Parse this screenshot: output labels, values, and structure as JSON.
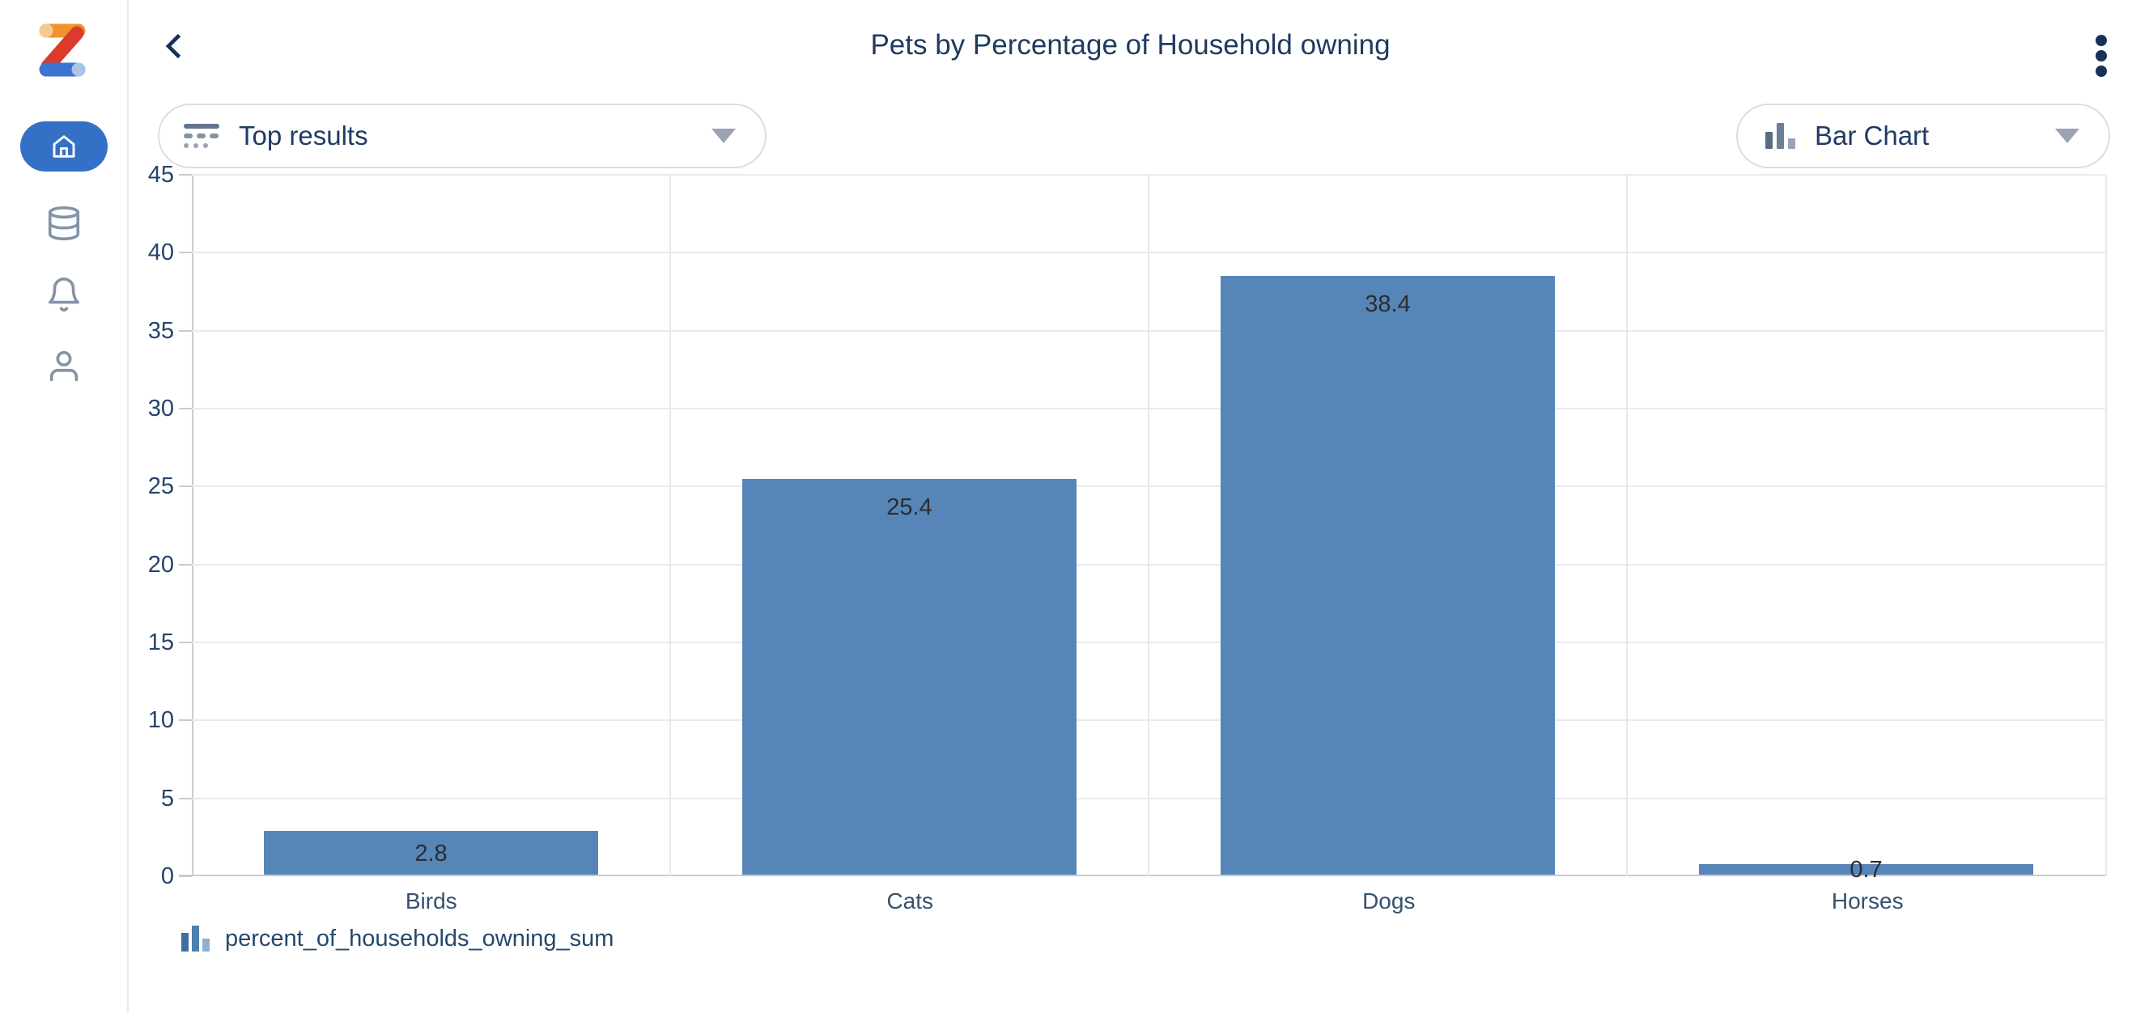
{
  "sidebar": {
    "items": [
      {
        "icon": "home-icon",
        "active": true
      },
      {
        "icon": "database-icon",
        "active": false
      },
      {
        "icon": "bell-icon",
        "active": false
      },
      {
        "icon": "person-icon",
        "active": false
      }
    ]
  },
  "header": {
    "title": "Pets by Percentage of Household owning",
    "back_icon": "chevron-left-icon",
    "menu_icon": "kebab-menu-icon"
  },
  "controls": {
    "results_dropdown": {
      "label": "Top results",
      "icon": "top-results-filter-icon",
      "caret": "caret-down-icon"
    },
    "chart_type_dropdown": {
      "label": "Bar Chart",
      "icon": "bar-chart-icon",
      "caret": "caret-down-icon"
    }
  },
  "chart_data": {
    "type": "bar",
    "title": "Pets by Percentage of Household owning",
    "categories": [
      "Birds",
      "Cats",
      "Dogs",
      "Horses"
    ],
    "values": [
      2.8,
      25.4,
      38.4,
      0.7
    ],
    "series": [
      {
        "name": "percent_of_households_owning_sum",
        "values": [
          2.8,
          25.4,
          38.4,
          0.7
        ]
      }
    ],
    "xlabel": "",
    "ylabel": "",
    "ylim": [
      0,
      45
    ],
    "ytick_step": 5,
    "bar_color": "#5685B8",
    "value_label_color": "#2D2D2D",
    "grid": true,
    "legend_position": "bottom-left"
  },
  "colors": {
    "accent_blue": "#3470C6",
    "navy_text": "#1E3A5F",
    "bar_fill": "#5685B8",
    "sidebar_icon": "#8493A8"
  }
}
